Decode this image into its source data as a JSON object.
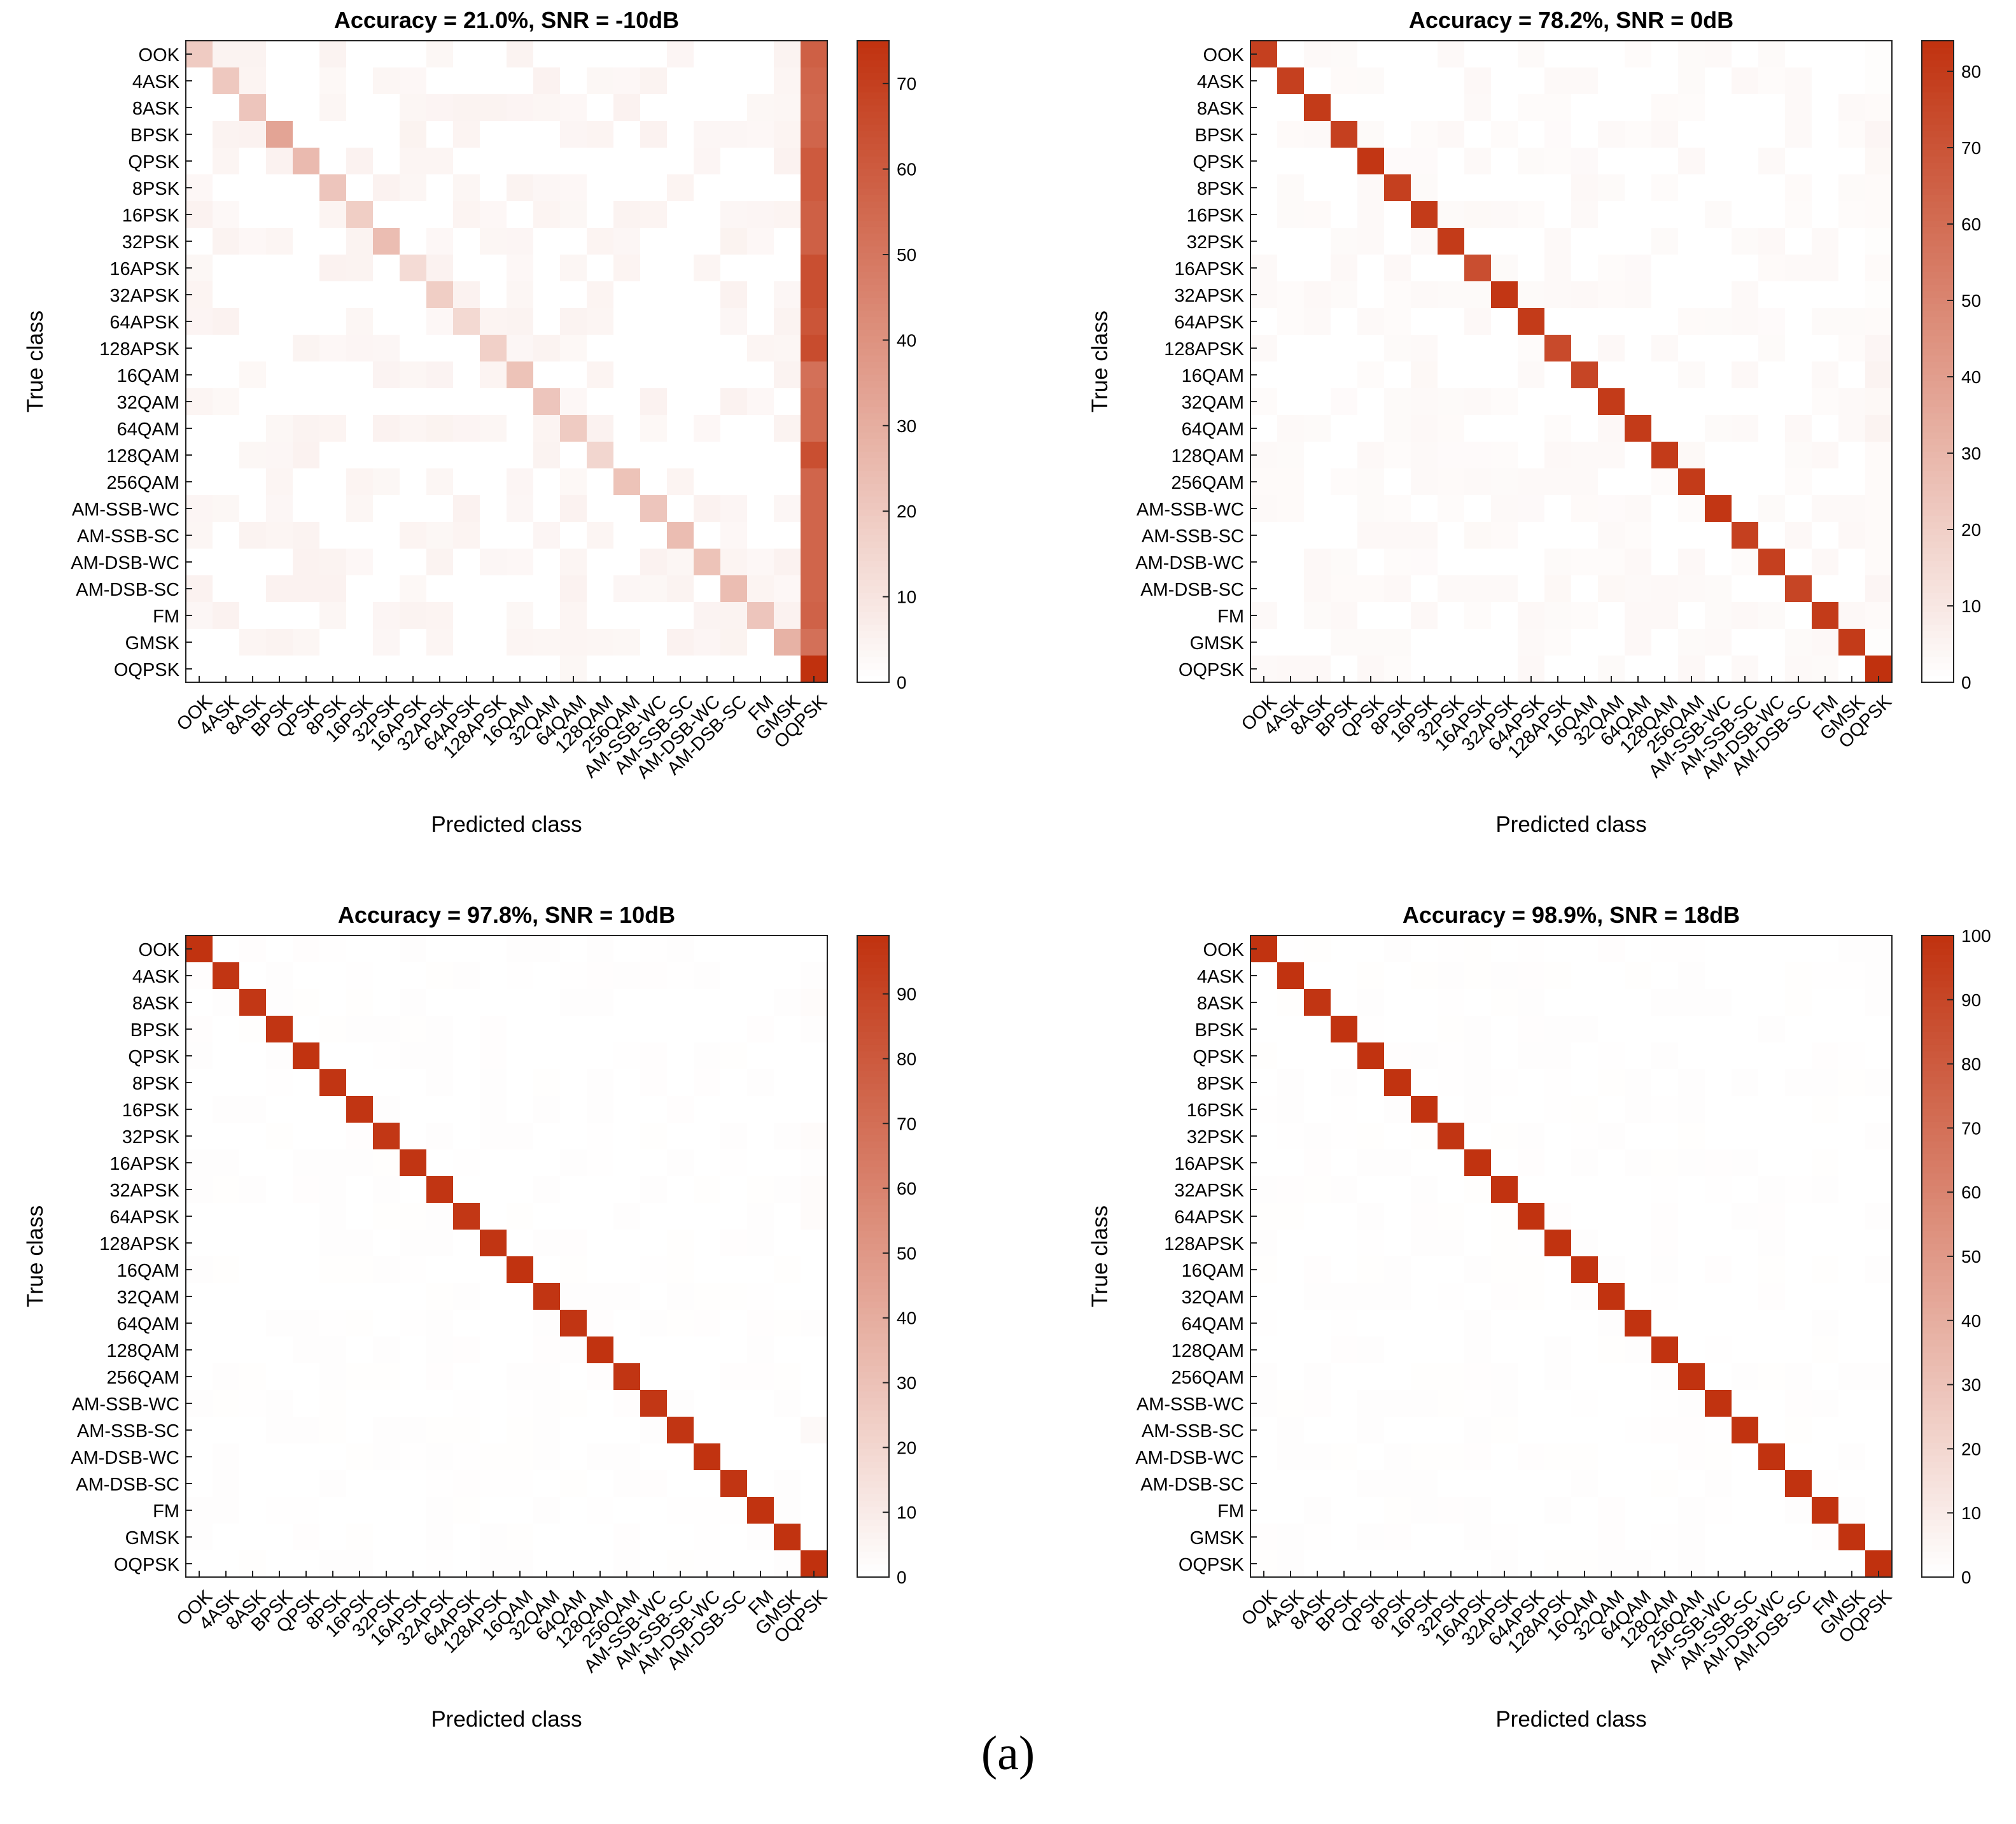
{
  "colors": {
    "high": "#c0310e",
    "low": "#ffffff",
    "axis": "#222222",
    "text": "#000000"
  },
  "caption": "(a)",
  "chart_data": [
    {
      "type": "heatmap",
      "title": "Accuracy = 21.0%, SNR = -10dB",
      "xlabel": "Predicted class",
      "ylabel": "True class",
      "categories": [
        "OOK",
        "4ASK",
        "8ASK",
        "BPSK",
        "QPSK",
        "8PSK",
        "16PSK",
        "32PSK",
        "16APSK",
        "32APSK",
        "64APSK",
        "128APSK",
        "16QAM",
        "32QAM",
        "64QAM",
        "128QAM",
        "256QAM",
        "AM-SSB-WC",
        "AM-SSB-SC",
        "AM-DSB-WC",
        "AM-DSB-SC",
        "FM",
        "GMSK",
        "OQPSK"
      ],
      "diagonal": [
        19,
        20,
        21,
        33,
        25,
        21,
        18,
        24,
        13,
        18,
        14,
        17,
        22,
        21,
        19,
        15,
        22,
        21,
        24,
        22,
        24,
        21,
        28,
        75
      ],
      "last_column": [
        58,
        56,
        55,
        56,
        60,
        60,
        58,
        58,
        64,
        64,
        62,
        65,
        52,
        54,
        54,
        64,
        56,
        56,
        56,
        56,
        56,
        57,
        52,
        75
      ],
      "noise_level": 3,
      "colorbar": {
        "min": 0,
        "max": 75,
        "ticks": [
          0,
          10,
          20,
          30,
          40,
          50,
          60,
          70
        ]
      }
    },
    {
      "type": "heatmap",
      "title": "Accuracy = 78.2%, SNR = 0dB",
      "xlabel": "Predicted class",
      "ylabel": "True class",
      "categories": [
        "OOK",
        "4ASK",
        "8ASK",
        "BPSK",
        "QPSK",
        "8PSK",
        "16PSK",
        "32PSK",
        "16APSK",
        "32APSK",
        "64APSK",
        "128APSK",
        "16QAM",
        "32QAM",
        "64QAM",
        "128QAM",
        "256QAM",
        "AM-SSB-WC",
        "AM-SSB-SC",
        "AM-DSB-WC",
        "AM-DSB-SC",
        "FM",
        "GMSK",
        "OQPSK"
      ],
      "diagonal": [
        78,
        78,
        80,
        78,
        82,
        78,
        80,
        80,
        72,
        82,
        80,
        74,
        76,
        80,
        80,
        80,
        80,
        82,
        78,
        78,
        76,
        80,
        80,
        84
      ],
      "last_column": [
        1,
        1,
        2,
        4,
        3,
        2,
        2,
        1,
        2,
        1,
        2,
        4,
        5,
        3,
        5,
        2,
        2,
        2,
        2,
        2,
        4,
        2,
        1,
        84
      ],
      "noise_level": 3,
      "colorbar": {
        "min": 0,
        "max": 84,
        "ticks": [
          0,
          10,
          20,
          30,
          40,
          50,
          60,
          70,
          80
        ]
      }
    },
    {
      "type": "heatmap",
      "title": "Accuracy = 97.8%, SNR = 10dB",
      "xlabel": "Predicted class",
      "ylabel": "True class",
      "categories": [
        "OOK",
        "4ASK",
        "8ASK",
        "BPSK",
        "QPSK",
        "8PSK",
        "16PSK",
        "32PSK",
        "16APSK",
        "32APSK",
        "64APSK",
        "128APSK",
        "16QAM",
        "32QAM",
        "64QAM",
        "128QAM",
        "256QAM",
        "AM-SSB-WC",
        "AM-SSB-SC",
        "AM-DSB-WC",
        "AM-DSB-SC",
        "FM",
        "GMSK",
        "OQPSK"
      ],
      "diagonal": [
        98,
        97,
        96,
        97,
        98,
        97,
        97,
        96,
        97,
        97,
        96,
        97,
        98,
        97,
        97,
        98,
        97,
        96,
        97,
        98,
        97,
        98,
        98,
        99
      ],
      "last_column": [
        0,
        1,
        2,
        1,
        0,
        0,
        0,
        2,
        1,
        2,
        2,
        0,
        0,
        0,
        1,
        0,
        0,
        0,
        3,
        0,
        0,
        0,
        0,
        99
      ],
      "noise_level": 1,
      "colorbar": {
        "min": 0,
        "max": 99,
        "ticks": [
          0,
          10,
          20,
          30,
          40,
          50,
          60,
          70,
          80,
          90
        ]
      }
    },
    {
      "type": "heatmap",
      "title": "Accuracy = 98.9%, SNR = 18dB",
      "xlabel": "Predicted class",
      "ylabel": "True class",
      "categories": [
        "OOK",
        "4ASK",
        "8ASK",
        "BPSK",
        "QPSK",
        "8PSK",
        "16PSK",
        "32PSK",
        "16APSK",
        "32APSK",
        "64APSK",
        "128APSK",
        "16QAM",
        "32QAM",
        "64QAM",
        "128QAM",
        "256QAM",
        "AM-SSB-WC",
        "AM-SSB-SC",
        "AM-DSB-WC",
        "AM-DSB-SC",
        "FM",
        "GMSK",
        "OQPSK"
      ],
      "diagonal": [
        99,
        99,
        98,
        99,
        99,
        99,
        99,
        98,
        99,
        99,
        99,
        99,
        99,
        99,
        99,
        99,
        99,
        99,
        99,
        99,
        99,
        99,
        99,
        100
      ],
      "last_column": [
        1,
        1,
        1,
        0,
        0,
        1,
        0,
        1,
        0,
        0,
        1,
        0,
        1,
        0,
        0,
        0,
        1,
        0,
        0,
        0,
        0,
        0,
        0,
        100
      ],
      "noise_level": 1,
      "colorbar": {
        "min": 0,
        "max": 100,
        "ticks": [
          0,
          10,
          20,
          30,
          40,
          50,
          60,
          70,
          80,
          90,
          100
        ]
      }
    }
  ]
}
